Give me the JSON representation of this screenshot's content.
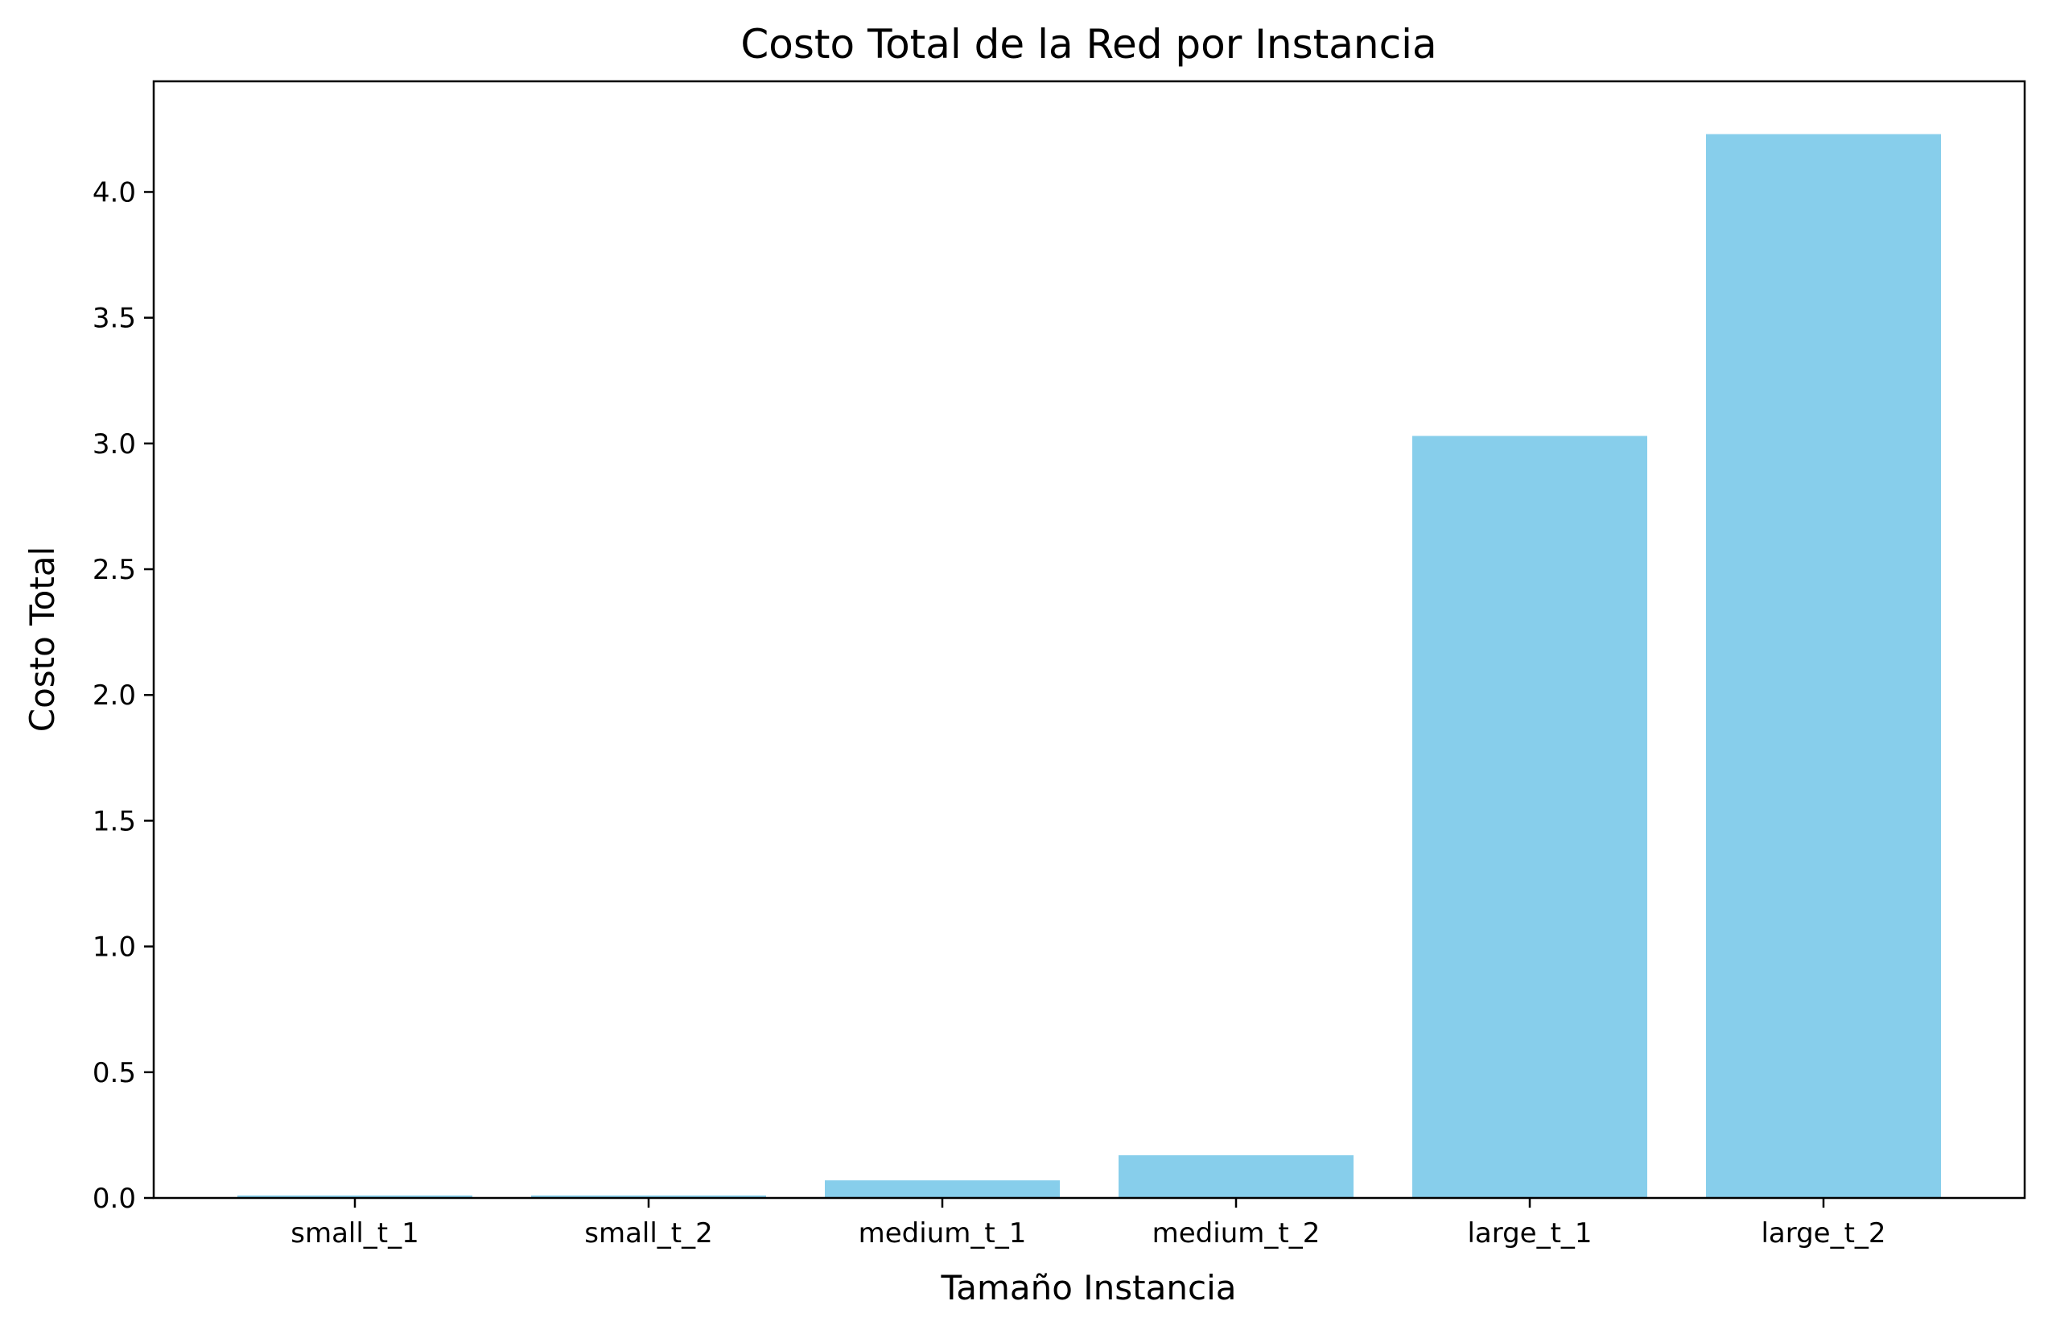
{
  "chart_data": {
    "type": "bar",
    "title": "Costo Total de la Red por Instancia",
    "xlabel": "Tamaño Instancia",
    "ylabel": "Costo Total",
    "categories": [
      "small_t_1",
      "small_t_2",
      "medium_t_1",
      "medium_t_2",
      "large_t_1",
      "large_t_2"
    ],
    "values": [
      0.01,
      0.01,
      0.07,
      0.17,
      3.03,
      4.23
    ],
    "ylim": [
      0,
      4.44
    ],
    "yticks": [
      0.0,
      0.5,
      1.0,
      1.5,
      2.0,
      2.5,
      3.0,
      3.5,
      4.0
    ],
    "ytick_labels": [
      "0.0",
      "0.5",
      "1.0",
      "1.5",
      "2.0",
      "2.5",
      "3.0",
      "3.5",
      "4.0"
    ],
    "grid": false,
    "legend": "none",
    "bar_color": "#87ceeb"
  }
}
